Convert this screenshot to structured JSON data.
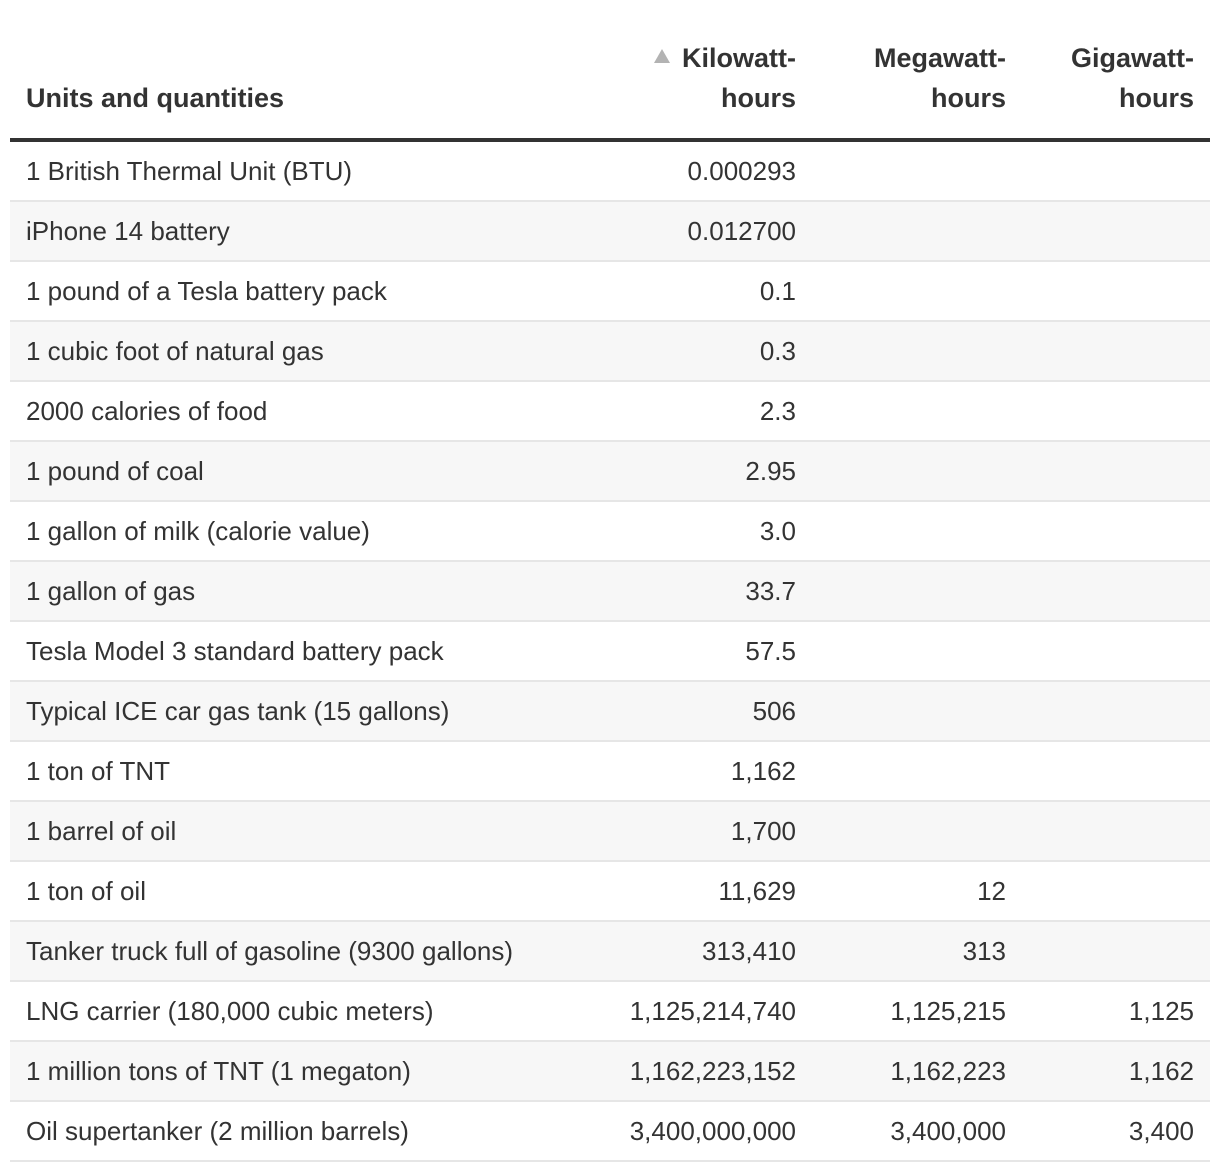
{
  "chart_data": {
    "type": "table",
    "columns": [
      "Units and quantities",
      "Kilowatt-hours",
      "Megawatt-hours",
      "Gigawatt-hours"
    ],
    "column_lines": [
      [
        "",
        "Units and quantities"
      ],
      [
        "Kilowatt-",
        "hours"
      ],
      [
        "Megawatt-",
        "hours"
      ],
      [
        "Gigawatt-",
        "hours"
      ]
    ],
    "sorted_column": "Kilowatt-hours",
    "sort_direction": "ascending",
    "rows": [
      [
        "1 British Thermal Unit (BTU)",
        "0.000293",
        "",
        ""
      ],
      [
        "iPhone 14 battery",
        "0.012700",
        "",
        ""
      ],
      [
        "1 pound of a Tesla battery pack",
        "0.1",
        "",
        ""
      ],
      [
        "1 cubic foot of natural gas",
        "0.3",
        "",
        ""
      ],
      [
        "2000 calories of food",
        "2.3",
        "",
        ""
      ],
      [
        "1 pound of coal",
        "2.95",
        "",
        ""
      ],
      [
        "1 gallon of milk (calorie value)",
        "3.0",
        "",
        ""
      ],
      [
        "1 gallon of gas",
        "33.7",
        "",
        ""
      ],
      [
        "Tesla Model 3 standard battery pack",
        "57.5",
        "",
        ""
      ],
      [
        "Typical ICE car gas tank (15 gallons)",
        "506",
        "",
        ""
      ],
      [
        "1 ton of TNT",
        "1,162",
        "",
        ""
      ],
      [
        "1 barrel of oil",
        "1,700",
        "",
        ""
      ],
      [
        "1 ton of oil",
        "11,629",
        "12",
        ""
      ],
      [
        "Tanker truck full of gasoline (9300 gallons)",
        "313,410",
        "313",
        ""
      ],
      [
        "LNG carrier (180,000 cubic meters)",
        "1,125,214,740",
        "1,125,215",
        "1,125"
      ],
      [
        "1 million tons of TNT (1 megaton)",
        "1,162,223,152",
        "1,162,223",
        "1,162"
      ],
      [
        "Oil supertanker (2 million barrels)",
        "3,400,000,000",
        "3,400,000",
        "3,400"
      ]
    ]
  },
  "colors": {
    "text": "#333333",
    "header_rule": "#333333",
    "row_divider": "#e6e6e6",
    "stripe": "#f7f7f7",
    "sort_icon": "#b3b3b3"
  },
  "icons": {
    "sort": "sort-ascending-icon"
  }
}
